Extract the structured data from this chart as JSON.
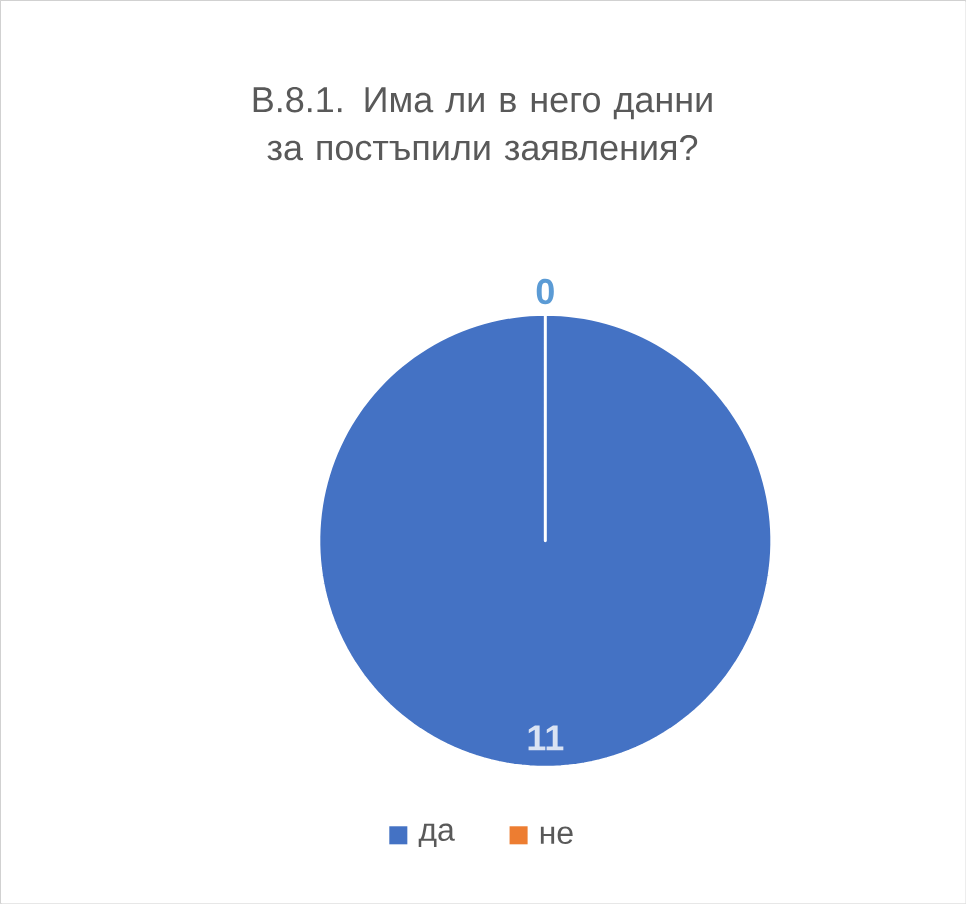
{
  "chart_data": {
    "type": "pie",
    "title": "В.8.1. Има ли в него данни за постъпили заявления?",
    "categories": [
      "да",
      "не"
    ],
    "values": [
      11,
      0
    ],
    "colors": [
      "#4472c4",
      "#ed7d31"
    ],
    "value_labels": [
      "11",
      "0"
    ],
    "legend": "bottom"
  }
}
